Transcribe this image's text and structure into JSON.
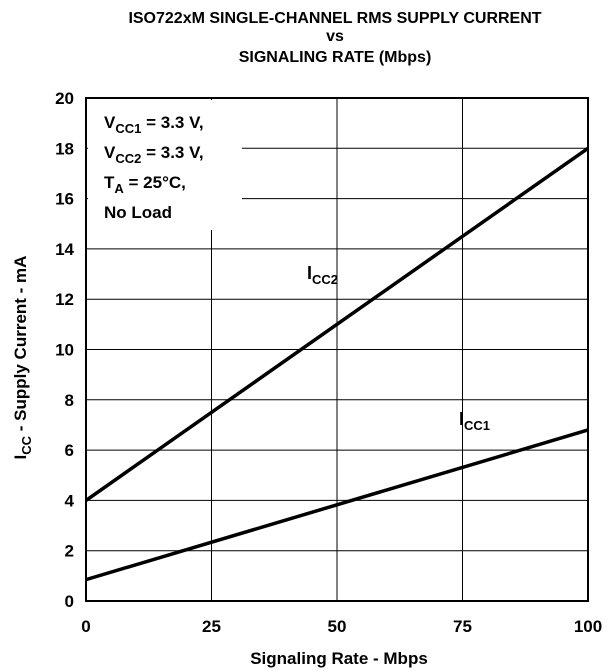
{
  "chart_data": {
    "type": "line",
    "title_lines": [
      "ISO722xM SINGLE-CHANNEL RMS SUPPLY CURRENT",
      "vs",
      "SIGNALING RATE (Mbps)"
    ],
    "xlabel": "Signaling Rate - Mbps",
    "ylabel": {
      "main": "I",
      "sub": "CC",
      "rest": " - Supply Current - mA"
    },
    "xlim": [
      0,
      100
    ],
    "ylim": [
      0,
      20
    ],
    "x_ticks": [
      0,
      25,
      50,
      75,
      100
    ],
    "y_ticks": [
      0,
      2,
      4,
      6,
      8,
      10,
      12,
      14,
      16,
      18,
      20
    ],
    "grid": true,
    "annotation": [
      {
        "main": "V",
        "sub": "CC1",
        "rest": " = 3.3 V,"
      },
      {
        "main": "V",
        "sub": "CC2",
        "rest": " = 3.3 V,"
      },
      {
        "main": "T",
        "sub": "A",
        "rest": " = 25°C,"
      },
      {
        "main": "No Load",
        "sub": "",
        "rest": ""
      }
    ],
    "series": [
      {
        "name": "ICC2",
        "label_main": "I",
        "label_sub": "CC2",
        "x": [
          0,
          100
        ],
        "y": [
          4.0,
          18.0
        ]
      },
      {
        "name": "ICC1",
        "label_main": "I",
        "label_sub": "CC1",
        "x": [
          0,
          100
        ],
        "y": [
          0.85,
          6.8
        ]
      }
    ]
  }
}
